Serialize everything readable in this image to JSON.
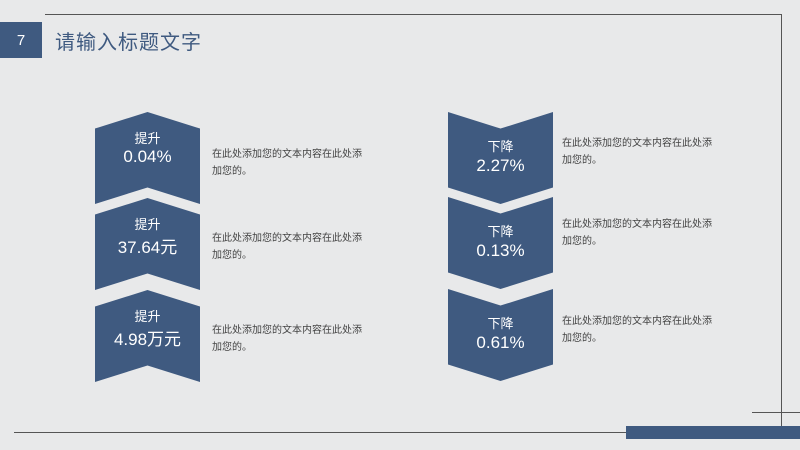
{
  "slide": {
    "number": "7",
    "title": "请输入标题文字"
  },
  "left_items": [
    {
      "label": "提升",
      "value": "0.04%",
      "desc": "在此处添加您的文本内容在此处添加您的。"
    },
    {
      "label": "提升",
      "value": "37.64元",
      "desc": "在此处添加您的文本内容在此处添加您的。"
    },
    {
      "label": "提升",
      "value": "4.98万元",
      "desc": "在此处添加您的文本内容在此处添加您的。"
    }
  ],
  "right_items": [
    {
      "label": "下降",
      "value": "2.27%",
      "desc": "在此处添加您的文本内容在此处添加您的。"
    },
    {
      "label": "下降",
      "value": "0.13%",
      "desc": "在此处添加您的文本内容在此处添加您的。"
    },
    {
      "label": "下降",
      "value": "0.61%",
      "desc": "在此处添加您的文本内容在此处添加您的。"
    }
  ],
  "colors": {
    "accent": "#3f5a80",
    "background": "#e8e9ea"
  }
}
